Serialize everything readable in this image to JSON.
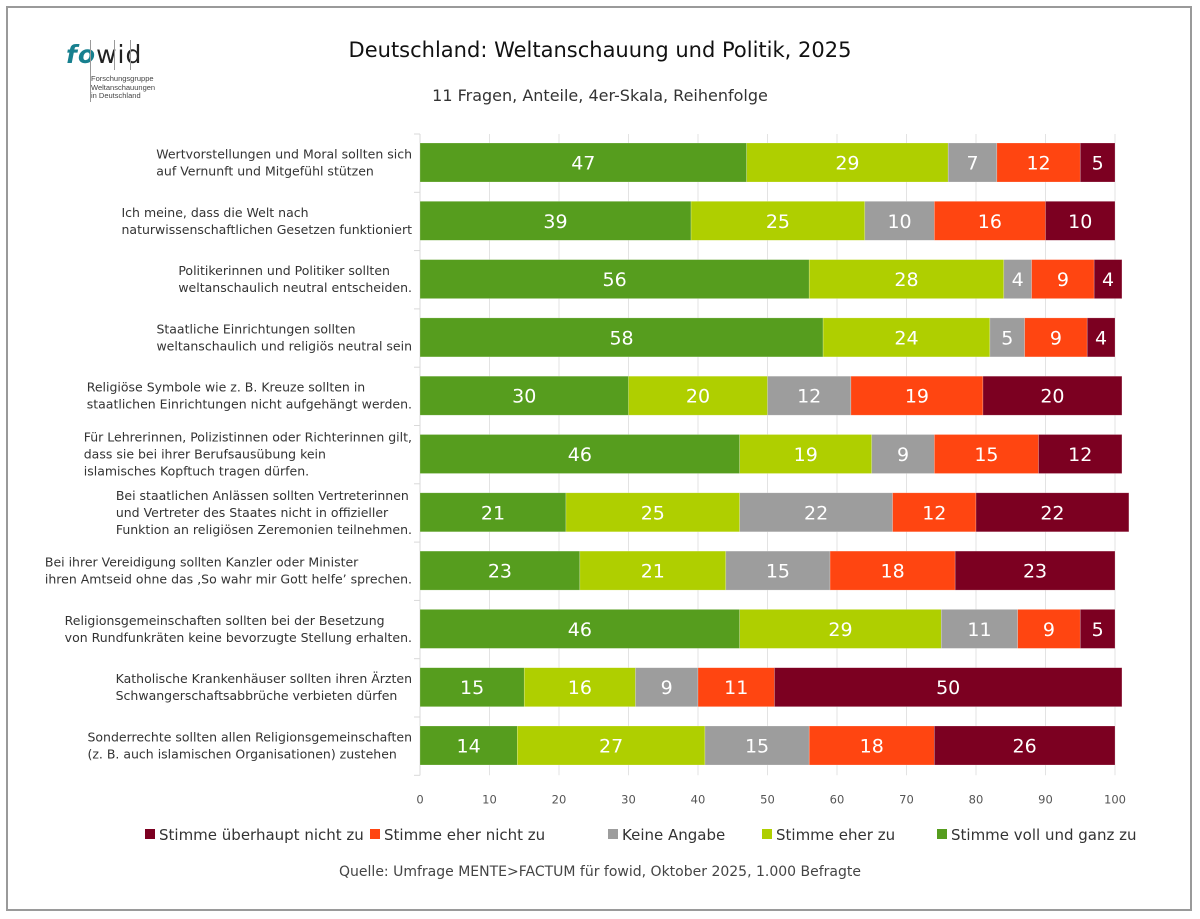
{
  "logo": {
    "text_fo": "fo",
    "text_wid": "wid",
    "subtitle_lines": "Forschungsgruppe\nWeltanschauungen\nin Deutschland"
  },
  "chart_data": {
    "type": "bar",
    "orientation": "horizontal",
    "stacked": true,
    "title": "Deutschland: Weltanschauung und Politik, 2025",
    "subtitle": "11 Fragen, Anteile, 4er-Skala, Reihenfolge",
    "xlabel": "",
    "ylabel": "",
    "xlim": [
      0,
      100
    ],
    "xticks": [
      0,
      10,
      20,
      30,
      40,
      50,
      60,
      70,
      80,
      90,
      100
    ],
    "grid": true,
    "legend_position": "bottom",
    "source": "Quelle: Umfrage MENTE>FACTUM für fowid, Oktober 2025, 1.000 Befragte",
    "categories": [
      [
        "Wertvorstellungen und Moral sollten sich",
        "auf Vernunft und Mitgefühl stützen"
      ],
      [
        "Ich meine, dass die Welt nach",
        "naturwissenschaftlichen Gesetzen funktioniert"
      ],
      [
        "Politikerinnen und Politiker sollten",
        "weltanschaulich neutral entscheiden."
      ],
      [
        "Staatliche Einrichtungen sollten",
        "weltanschaulich und religiös neutral sein"
      ],
      [
        "Religiöse Symbole wie z. B. Kreuze sollten in",
        "staatlichen Einrichtungen nicht aufgehängt werden."
      ],
      [
        "Für Lehrerinnen, Polizistinnen oder Richterinnen gilt,",
        "dass sie bei ihrer Berufsausübung kein",
        "islamisches Kopftuch tragen dürfen."
      ],
      [
        "Bei staatlichen Anlässen sollten Vertreterinnen",
        "und Vertreter des Staates nicht in offizieller",
        "Funktion an religiösen Zeremonien teilnehmen."
      ],
      [
        "Bei ihrer Vereidigung sollten Kanzler oder Minister",
        "ihren Amtseid ohne das ‚So wahr mir Gott helfe’ sprechen."
      ],
      [
        "Religionsgemeinschaften sollten bei der Besetzung",
        "von Rundfunkräten keine bevorzugte Stellung erhalten."
      ],
      [
        "Katholische Krankenhäuser sollten ihren Ärzten",
        "Schwangerschaftsabbrüche verbieten dürfen"
      ],
      [
        "Sonderrechte sollten allen Religionsgemeinschaften",
        "(z. B. auch islamischen Organisationen) zustehen"
      ]
    ],
    "series": [
      {
        "name": "Stimme voll und ganz zu",
        "color": "#569d1e",
        "values": [
          47,
          39,
          56,
          58,
          30,
          46,
          21,
          23,
          46,
          15,
          14
        ]
      },
      {
        "name": "Stimme eher zu",
        "color": "#afcf00",
        "values": [
          29,
          25,
          28,
          24,
          20,
          19,
          25,
          21,
          29,
          16,
          27
        ]
      },
      {
        "name": "Keine Angabe",
        "color": "#9d9d9d",
        "values": [
          7,
          10,
          4,
          5,
          12,
          9,
          22,
          15,
          11,
          9,
          15
        ]
      },
      {
        "name": "Stimme eher nicht zu",
        "color": "#ff4511",
        "values": [
          12,
          16,
          9,
          9,
          19,
          15,
          12,
          18,
          9,
          11,
          18
        ]
      },
      {
        "name": "Stimme überhaupt nicht zu",
        "color": "#7c0021",
        "values": [
          5,
          10,
          4,
          4,
          20,
          12,
          22,
          23,
          5,
          50,
          26
        ]
      }
    ],
    "legend_order": [
      "Stimme überhaupt nicht zu",
      "Stimme eher nicht zu",
      "Keine Angabe",
      "Stimme eher zu",
      "Stimme voll und ganz zu"
    ]
  }
}
